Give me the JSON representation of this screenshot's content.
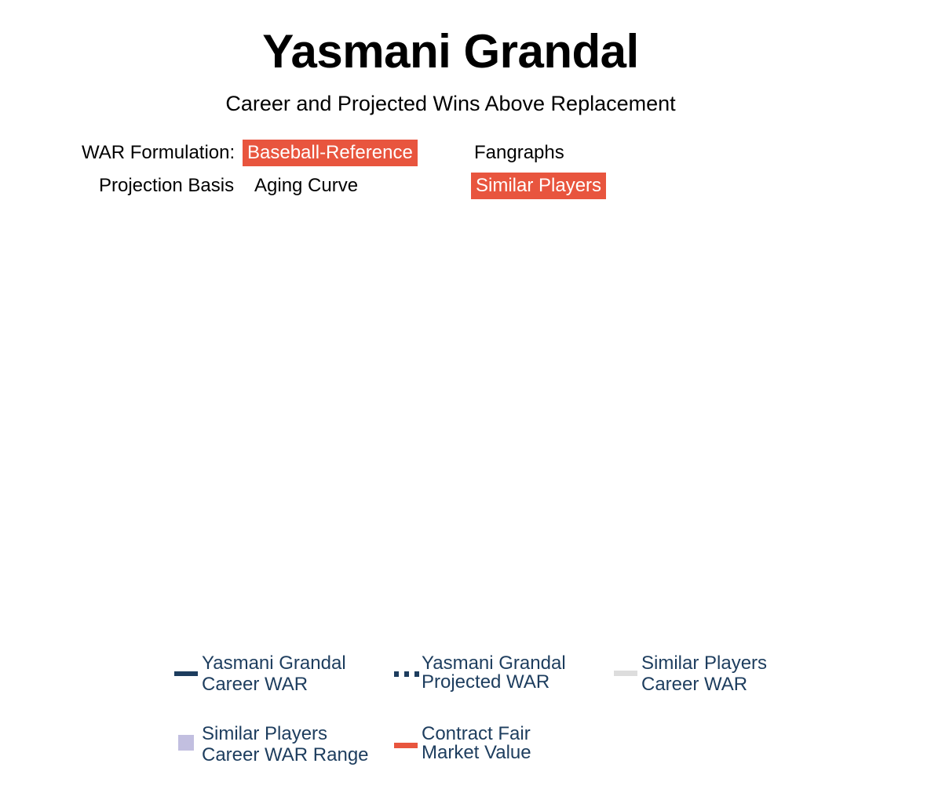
{
  "header": {
    "title": "Yasmani Grandal",
    "subtitle": "Career and Projected Wins Above Replacement"
  },
  "controls": {
    "war_formulation": {
      "label": "WAR Formulation:",
      "options": [
        {
          "label": "Baseball-Reference",
          "selected": true
        },
        {
          "label": "Fangraphs",
          "selected": false
        }
      ]
    },
    "projection_basis": {
      "label": "Projection Basis",
      "options": [
        {
          "label": "Aging Curve",
          "selected": false
        },
        {
          "label": "Similar Players",
          "selected": true
        }
      ]
    }
  },
  "legend": {
    "items": [
      {
        "line1": "Yasmani Grandal",
        "line2": "Career WAR",
        "icon": "solid-line-swatch",
        "color": "#1d3d5e"
      },
      {
        "line1": "Yasmani Grandal",
        "line2": "Projected WAR",
        "icon": "dotted-line-swatch",
        "color": "#1d3d5e"
      },
      {
        "line1": "Similar Players",
        "line2": "Career WAR",
        "icon": "gray-line-swatch",
        "color": "#dddddd"
      },
      {
        "line1": "Similar Players",
        "line2": "Career WAR Range",
        "icon": "square-swatch",
        "color": "#c2bfe0"
      },
      {
        "line1": "Contract Fair",
        "line2": "Market Value",
        "icon": "red-line-swatch",
        "color": "#e8553e"
      }
    ]
  },
  "colors": {
    "accent": "#e8553e",
    "legend_text": "#1d3d5e"
  }
}
